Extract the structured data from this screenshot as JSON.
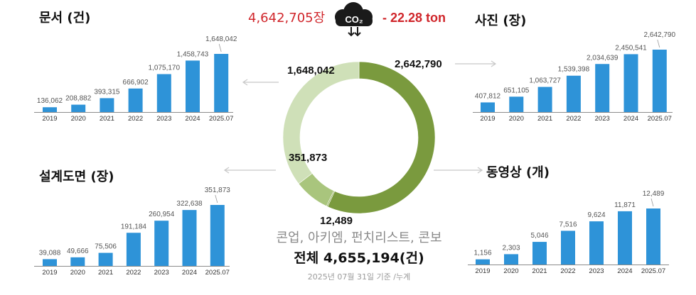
{
  "header": {
    "total_photos_text": "4,642,705장",
    "co2_label": "CO₂",
    "co2_savings": "- 22.28 ton"
  },
  "summary": {
    "sources": "콘업, 아키엠, 펀치리스트, 콘보",
    "total": "전체 4,655,194(건)",
    "note": "2025년 07월 31일 기준 /누계"
  },
  "colors": {
    "bar": "#2e93d8",
    "donut_photos": "#7a9a3e",
    "donut_documents": "#cfe0b8",
    "donut_drawings": "#a9c57d",
    "donut_videos": "#8fae55",
    "red": "#d0262b"
  },
  "chart_data": [
    {
      "type": "bar",
      "title": "문서 (건)",
      "categories": [
        "2019",
        "2020",
        "2021",
        "2022",
        "2023",
        "2024",
        "2025.07"
      ],
      "values": [
        136062,
        208882,
        393315,
        666902,
        1075170,
        1458743,
        1648042
      ],
      "value_labels": [
        "136,062",
        "208,882",
        "393,315",
        "666,902",
        "1,075,170",
        "1,458,743",
        "1,648,042"
      ],
      "ylim": [
        0,
        1700000
      ],
      "grid": false
    },
    {
      "type": "bar",
      "title": "사진 (장)",
      "categories": [
        "2019",
        "2020",
        "2021",
        "2022",
        "2023",
        "2024",
        "2025.07"
      ],
      "values": [
        407812,
        651105,
        1063727,
        1539398,
        2034639,
        2450541,
        2642790
      ],
      "value_labels": [
        "407,812",
        "651,105",
        "1,063,727",
        "1,539,398",
        "2,034,639",
        "2,450,541",
        "2,642,790"
      ],
      "ylim": [
        0,
        2700000
      ],
      "grid": false
    },
    {
      "type": "bar",
      "title": "설계도면 (장)",
      "categories": [
        "2019",
        "2020",
        "2021",
        "2022",
        "2023",
        "2024",
        "2025.07"
      ],
      "values": [
        39088,
        49666,
        75506,
        191184,
        260954,
        322638,
        351873
      ],
      "value_labels": [
        "39,088",
        "49,666",
        "75,506",
        "191,184",
        "260,954",
        "322,638",
        "351,873"
      ],
      "ylim": [
        0,
        360000
      ],
      "grid": false
    },
    {
      "type": "bar",
      "title": "동영상 (개)",
      "categories": [
        "2019",
        "2020",
        "2021",
        "2022",
        "2023",
        "2024",
        "2025.07"
      ],
      "values": [
        1156,
        2303,
        5046,
        7516,
        9624,
        11871,
        12489
      ],
      "value_labels": [
        "1,156",
        "2,303",
        "5,046",
        "7,516",
        "9,624",
        "11,871",
        "12,489"
      ],
      "ylim": [
        0,
        12800
      ],
      "grid": false
    },
    {
      "type": "pie",
      "donut": true,
      "slices": [
        {
          "value": 2642790,
          "label": "2,642,790"
        },
        {
          "value": 12489,
          "label": "12,489"
        },
        {
          "value": 351873,
          "label": "351,873"
        },
        {
          "value": 1648042,
          "label": "1,648,042"
        }
      ]
    }
  ]
}
